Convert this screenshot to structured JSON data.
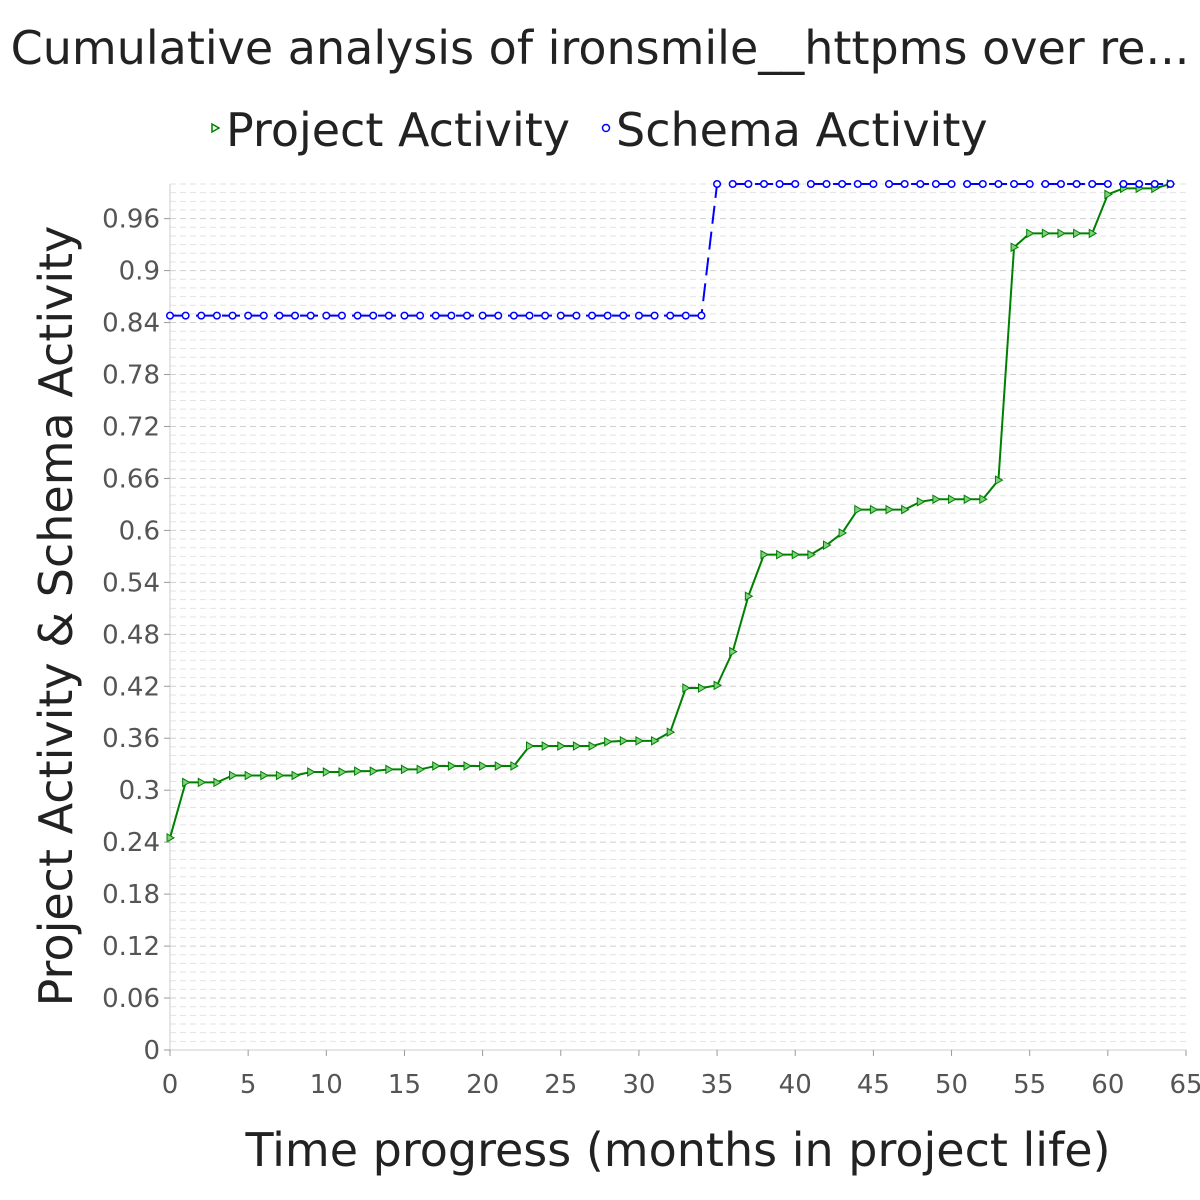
{
  "chart_data": {
    "type": "line",
    "title": "Cumulative analysis of ironsmile__httpms over re...",
    "xlabel": "Time progress (months in project life)",
    "ylabel": "Project Activity & Schema Activity",
    "xlim": [
      0,
      65
    ],
    "ylim": [
      0,
      1.0
    ],
    "x_ticks": [
      0,
      5,
      10,
      15,
      20,
      25,
      30,
      35,
      40,
      45,
      50,
      55,
      60,
      65
    ],
    "y_ticks": [
      0,
      0.06,
      0.12,
      0.18,
      0.24,
      0.3,
      0.36,
      0.42,
      0.48,
      0.54,
      0.6,
      0.66,
      0.72,
      0.78,
      0.84,
      0.9,
      0.96
    ],
    "legend_position": "top",
    "grid": "horizontal dashed",
    "series": [
      {
        "name": "Project Activity",
        "color": "#008000",
        "marker": "triangle-right",
        "x": [
          0,
          1,
          2,
          3,
          4,
          5,
          6,
          7,
          8,
          9,
          10,
          11,
          12,
          13,
          14,
          15,
          16,
          17,
          18,
          19,
          20,
          21,
          22,
          23,
          24,
          25,
          26,
          27,
          28,
          29,
          30,
          31,
          32,
          33,
          34,
          35,
          36,
          37,
          38,
          39,
          40,
          41,
          42,
          43,
          44,
          45,
          46,
          47,
          48,
          49,
          50,
          51,
          52,
          53,
          54,
          55,
          56,
          57,
          58,
          59,
          60,
          61,
          62,
          63,
          64
        ],
        "y": [
          0.245,
          0.309,
          0.309,
          0.309,
          0.317,
          0.317,
          0.317,
          0.317,
          0.317,
          0.321,
          0.321,
          0.321,
          0.322,
          0.322,
          0.324,
          0.324,
          0.324,
          0.328,
          0.328,
          0.328,
          0.328,
          0.328,
          0.328,
          0.351,
          0.351,
          0.351,
          0.351,
          0.351,
          0.356,
          0.357,
          0.357,
          0.357,
          0.367,
          0.418,
          0.418,
          0.421,
          0.46,
          0.524,
          0.572,
          0.572,
          0.572,
          0.572,
          0.583,
          0.597,
          0.624,
          0.624,
          0.624,
          0.624,
          0.633,
          0.636,
          0.636,
          0.636,
          0.636,
          0.658,
          0.927,
          0.943,
          0.943,
          0.943,
          0.943,
          0.943,
          0.988,
          0.995,
          0.995,
          0.995,
          1.0
        ]
      },
      {
        "name": "Schema Activity",
        "color": "#0000ff",
        "marker": "circle",
        "x": [
          0,
          1,
          2,
          3,
          4,
          5,
          6,
          7,
          8,
          9,
          10,
          11,
          12,
          13,
          14,
          15,
          16,
          17,
          18,
          19,
          20,
          21,
          22,
          23,
          24,
          25,
          26,
          27,
          28,
          29,
          30,
          31,
          32,
          33,
          34,
          35,
          36,
          37,
          38,
          39,
          40,
          41,
          42,
          43,
          44,
          45,
          46,
          47,
          48,
          49,
          50,
          51,
          52,
          53,
          54,
          55,
          56,
          57,
          58,
          59,
          60,
          61,
          62,
          63,
          64
        ],
        "y": [
          0.848,
          0.848,
          0.848,
          0.848,
          0.848,
          0.848,
          0.848,
          0.848,
          0.848,
          0.848,
          0.848,
          0.848,
          0.848,
          0.848,
          0.848,
          0.848,
          0.848,
          0.848,
          0.848,
          0.848,
          0.848,
          0.848,
          0.848,
          0.848,
          0.848,
          0.848,
          0.848,
          0.848,
          0.848,
          0.848,
          0.848,
          0.848,
          0.848,
          0.848,
          0.848,
          1.0,
          1.0,
          1.0,
          1.0,
          1.0,
          1.0,
          1.0,
          1.0,
          1.0,
          1.0,
          1.0,
          1.0,
          1.0,
          1.0,
          1.0,
          1.0,
          1.0,
          1.0,
          1.0,
          1.0,
          1.0,
          1.0,
          1.0,
          1.0,
          1.0,
          1.0,
          1.0,
          1.0,
          1.0,
          1.0
        ]
      }
    ]
  }
}
